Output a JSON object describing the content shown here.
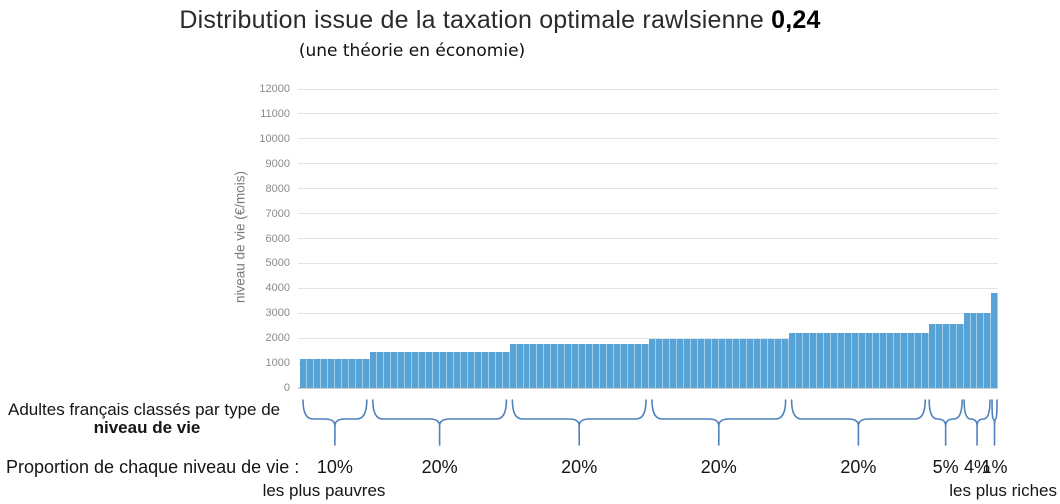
{
  "title": {
    "main": "Distribution issue de la taxation optimale rawlsienne ",
    "highlight": "0,24",
    "subtitle": "(une théorie en économie)"
  },
  "chart_data": {
    "type": "bar",
    "title": "Distribution issue de la taxation optimale rawlsienne 0,24",
    "subtitle": "(une théorie en économie)",
    "ylabel": "niveau de vie (€/mois)",
    "ylim": [
      0,
      12000
    ],
    "yticks": [
      0,
      1000,
      2000,
      3000,
      4000,
      5000,
      6000,
      7000,
      8000,
      9000,
      10000,
      11000,
      12000
    ],
    "grid": "horizontal",
    "legend": "none",
    "bar_color": "#58a3d6",
    "brace_color": "#4f81bd",
    "x_unit": "percentiles d'adultes français (1% par barre)",
    "groups": [
      {
        "label": "10%",
        "proportion_pct": 10,
        "value": 1150
      },
      {
        "label": "20%",
        "proportion_pct": 20,
        "value": 1450
      },
      {
        "label": "20%",
        "proportion_pct": 20,
        "value": 1760
      },
      {
        "label": "20%",
        "proportion_pct": 20,
        "value": 1950
      },
      {
        "label": "20%",
        "proportion_pct": 20,
        "value": 2210
      },
      {
        "label": "5%",
        "proportion_pct": 5,
        "value": 2550
      },
      {
        "label": "4%",
        "proportion_pct": 4,
        "value": 3000
      },
      {
        "label": "1%",
        "proportion_pct": 1,
        "value": 3800
      }
    ],
    "annotations": {
      "classification_line1": "Adultes français classés par type de",
      "classification_line2": "niveau de vie",
      "proportion_caption": "Proportion de chaque niveau de vie :",
      "poorest": "les plus pauvres",
      "richest": "les plus riches"
    }
  }
}
